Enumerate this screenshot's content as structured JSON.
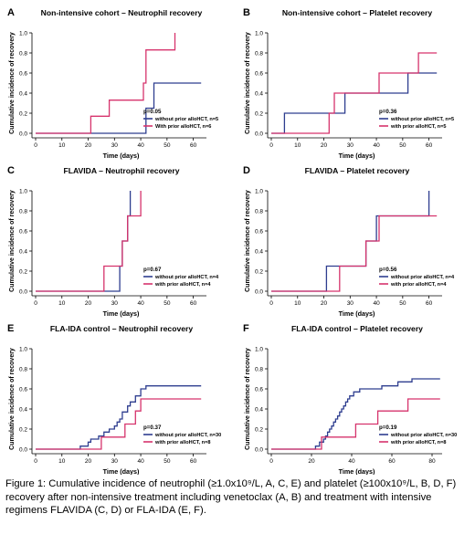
{
  "colors": {
    "blue": "#2e3d8f",
    "red": "#d6336c",
    "axis": "#000000"
  },
  "caption": "Figure 1: Cumulative incidence of neutrophil (≥1.0x10⁹/L, A, C, E) and platelet (≥100x10⁹/L, B, D, F) recovery after non-intensive treatment including venetoclax (A, B) and treatment with intensive regimens FLAVIDA (C, D) or FLA-IDA (E, F).",
  "chart_data": [
    {
      "panel": "A",
      "type": "line",
      "step": true,
      "title": "Non-intensive cohort – Neutrophil recovery",
      "xlabel": "Time (days)",
      "ylabel": "Cumulative incidence of recovery",
      "xlim": [
        0,
        65
      ],
      "ylim": [
        0,
        1
      ],
      "xticks": [
        0,
        10,
        20,
        30,
        40,
        50,
        60
      ],
      "yticks": [
        "0.0",
        "0.2",
        "0.4",
        "0.6",
        "0.8",
        "1.0"
      ],
      "p_value": "p=0.05",
      "series": [
        {
          "name": "without prior alloHCT, n=5",
          "color": "blue",
          "x": [
            0,
            42,
            45,
            63
          ],
          "y": [
            0,
            0.25,
            0.5,
            0.5
          ]
        },
        {
          "name": "With prior alloHCT, n=6",
          "color": "red",
          "x": [
            0,
            21,
            28,
            33,
            41,
            42,
            53
          ],
          "y": [
            0,
            0.17,
            0.33,
            0.33,
            0.5,
            0.83,
            1.0
          ]
        }
      ]
    },
    {
      "panel": "B",
      "type": "line",
      "step": true,
      "title": "Non-intensive cohort – Platelet recovery",
      "xlabel": "Time (days)",
      "ylabel": "Cumulative incidence of recovery",
      "xlim": [
        0,
        65
      ],
      "ylim": [
        0,
        1
      ],
      "xticks": [
        0,
        10,
        20,
        30,
        40,
        50,
        60
      ],
      "yticks": [
        "0.0",
        "0.2",
        "0.4",
        "0.6",
        "0.8",
        "1.0"
      ],
      "p_value": "p=0.36",
      "series": [
        {
          "name": "without prior alloHCT, n=5",
          "color": "blue",
          "x": [
            0,
            5,
            28,
            52,
            63
          ],
          "y": [
            0,
            0.2,
            0.4,
            0.6,
            0.6
          ]
        },
        {
          "name": "with prior alloHCT, n=5",
          "color": "red",
          "x": [
            0,
            22,
            24,
            41,
            56,
            63
          ],
          "y": [
            0,
            0.2,
            0.4,
            0.6,
            0.8,
            0.8
          ]
        }
      ]
    },
    {
      "panel": "C",
      "type": "line",
      "step": true,
      "title": "FLAVIDA – Neutrophil recovery",
      "xlabel": "Time (days)",
      "ylabel": "Cumulative incidence of recovery",
      "xlim": [
        0,
        65
      ],
      "ylim": [
        0,
        1
      ],
      "xticks": [
        0,
        10,
        20,
        30,
        40,
        50,
        60
      ],
      "yticks": [
        "0.0",
        "0.2",
        "0.4",
        "0.6",
        "0.8",
        "1.0"
      ],
      "p_value": "p=0.67",
      "series": [
        {
          "name": "without prior alloHCT, n=4",
          "color": "blue",
          "x": [
            0,
            32,
            33,
            35,
            36
          ],
          "y": [
            0,
            0.25,
            0.5,
            0.75,
            1.0
          ]
        },
        {
          "name": "with prior alloHCT, n=4",
          "color": "red",
          "x": [
            0,
            26,
            33,
            35,
            40
          ],
          "y": [
            0,
            0.25,
            0.5,
            0.75,
            1.0
          ]
        }
      ]
    },
    {
      "panel": "D",
      "type": "line",
      "step": true,
      "title": "FLAVIDA – Platelet recovery",
      "xlabel": "Time (days)",
      "ylabel": "Cumulative incidence of recovery",
      "xlim": [
        0,
        65
      ],
      "ylim": [
        0,
        1
      ],
      "xticks": [
        0,
        10,
        20,
        30,
        40,
        50,
        60
      ],
      "yticks": [
        "0.0",
        "0.2",
        "0.4",
        "0.6",
        "0.8",
        "1.0"
      ],
      "p_value": "p=0.56",
      "series": [
        {
          "name": "without prior alloHCT, n=4",
          "color": "blue",
          "x": [
            0,
            21,
            36,
            40,
            60
          ],
          "y": [
            0,
            0.25,
            0.5,
            0.75,
            1.0
          ]
        },
        {
          "name": "with prior alloHCT, n=4",
          "color": "red",
          "x": [
            0,
            26,
            36,
            41,
            63
          ],
          "y": [
            0,
            0.25,
            0.5,
            0.75,
            0.75
          ]
        }
      ]
    },
    {
      "panel": "E",
      "type": "line",
      "step": true,
      "title": "FLA-IDA control – Neutrophil recovery",
      "xlabel": "Time (days)",
      "ylabel": "Cumulative incidence of recovery",
      "xlim": [
        0,
        65
      ],
      "ylim": [
        0,
        1
      ],
      "xticks": [
        0,
        10,
        20,
        30,
        40,
        50,
        60
      ],
      "yticks": [
        "0.0",
        "0.2",
        "0.4",
        "0.6",
        "0.8",
        "1.0"
      ],
      "p_value": "p=0.37",
      "series": [
        {
          "name": "without prior alloHCT, n=30",
          "color": "blue",
          "x": [
            0,
            17,
            20,
            21,
            24,
            26,
            28,
            29,
            30,
            31,
            32,
            33,
            35,
            36,
            38,
            40,
            42,
            63
          ],
          "y": [
            0,
            0.03,
            0.07,
            0.1,
            0.13,
            0.17,
            0.2,
            0.2,
            0.23,
            0.27,
            0.3,
            0.37,
            0.43,
            0.47,
            0.53,
            0.6,
            0.63,
            0.63
          ]
        },
        {
          "name": "with prior alloHCT, n=8",
          "color": "red",
          "x": [
            0,
            25,
            31,
            34,
            38,
            40,
            63
          ],
          "y": [
            0,
            0.12,
            0.12,
            0.25,
            0.38,
            0.5,
            0.5
          ]
        }
      ]
    },
    {
      "panel": "F",
      "type": "line",
      "step": true,
      "title": "FLA-IDA control – Platelet recovery",
      "xlabel": "Time (days)",
      "ylabel": "Cumulative incidence of recovery",
      "xlim": [
        0,
        85
      ],
      "ylim": [
        0,
        1
      ],
      "xticks": [
        0,
        20,
        40,
        60,
        80
      ],
      "yticks": [
        "0.0",
        "0.2",
        "0.4",
        "0.6",
        "0.8",
        "1.0"
      ],
      "p_value": "p=0.19",
      "series": [
        {
          "name": "without prior alloHCT, n=30",
          "color": "blue",
          "x": [
            0,
            22,
            24,
            26,
            27,
            28,
            29,
            30,
            31,
            32,
            33,
            34,
            35,
            36,
            37,
            38,
            39,
            41,
            44,
            50,
            55,
            58,
            63,
            70,
            84
          ],
          "y": [
            0,
            0.03,
            0.07,
            0.1,
            0.13,
            0.17,
            0.2,
            0.23,
            0.27,
            0.3,
            0.33,
            0.37,
            0.4,
            0.43,
            0.47,
            0.5,
            0.53,
            0.57,
            0.6,
            0.6,
            0.63,
            0.63,
            0.67,
            0.7,
            0.7
          ]
        },
        {
          "name": "with prior alloHCT, n=8",
          "color": "red",
          "x": [
            0,
            25,
            28,
            33,
            42,
            53,
            68,
            84
          ],
          "y": [
            0,
            0.12,
            0.12,
            0.12,
            0.25,
            0.38,
            0.5,
            0.5
          ]
        }
      ]
    }
  ]
}
